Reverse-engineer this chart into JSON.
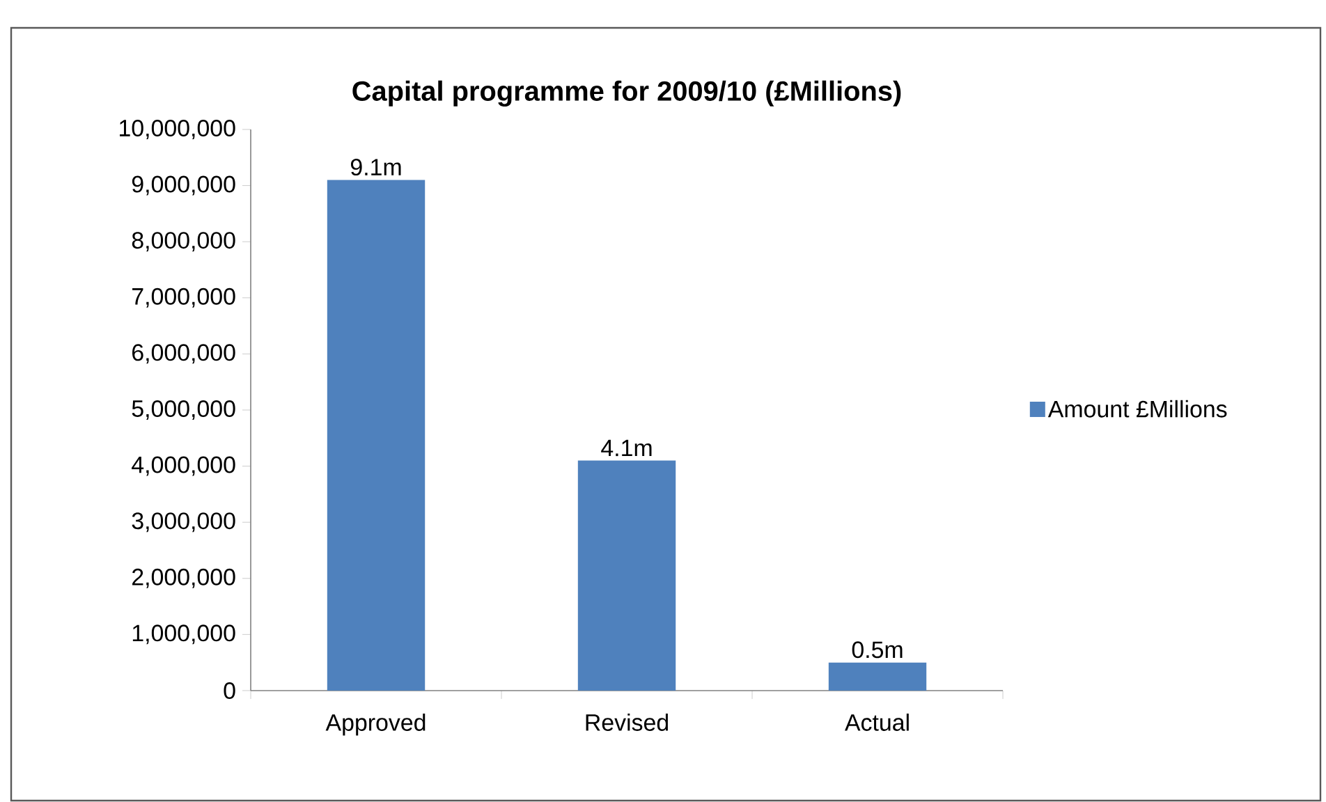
{
  "chart_data": {
    "type": "bar",
    "title": "Capital programme for 2009/10 (£Millions)",
    "categories": [
      "Approved",
      "Revised",
      "Actual"
    ],
    "series": [
      {
        "name": "Amount £Millions",
        "color": "#4f81bd",
        "values": [
          9100000,
          4100000,
          500000
        ],
        "value_labels": [
          "9.1m",
          "4.1m",
          "0.5m"
        ]
      }
    ],
    "ylim": [
      0,
      10000000
    ],
    "yticks": [
      {
        "value": 0,
        "label": "0"
      },
      {
        "value": 1000000,
        "label": "1,000,000"
      },
      {
        "value": 2000000,
        "label": "2,000,000"
      },
      {
        "value": 3000000,
        "label": "3,000,000"
      },
      {
        "value": 4000000,
        "label": "4,000,000"
      },
      {
        "value": 5000000,
        "label": "5,000,000"
      },
      {
        "value": 6000000,
        "label": "6,000,000"
      },
      {
        "value": 7000000,
        "label": "7,000,000"
      },
      {
        "value": 8000000,
        "label": "8,000,000"
      },
      {
        "value": 9000000,
        "label": "9,000,000"
      },
      {
        "value": 10000000,
        "label": "10,000,000"
      }
    ],
    "grid": false,
    "legend": "right"
  }
}
